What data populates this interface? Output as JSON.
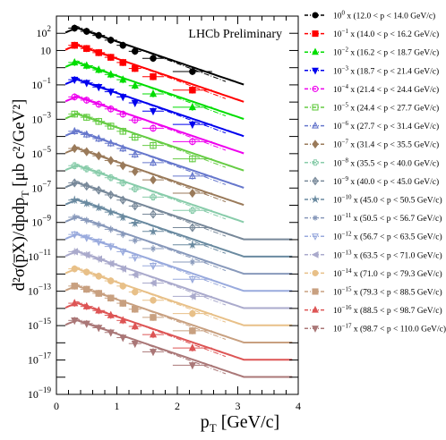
{
  "chart_data": {
    "type": "scatter",
    "title": "",
    "annotation": "LHCb Preliminary",
    "xlabel": "p",
    "xlabel_sub": "T",
    "xlabel_unit": " [GeV/c]",
    "ylabel": "d²σ(p̅X)/dpdp",
    "ylabel_sub": "T",
    "ylabel_unit": " [μb c²/GeV²]",
    "xlim": [
      0,
      4
    ],
    "ylim_log10": [
      -19,
      3
    ],
    "log_y": true,
    "grid": false,
    "legend_position": "right",
    "x_ticks": [
      {
        "v": 0,
        "label": "0"
      },
      {
        "v": 1,
        "label": "1"
      },
      {
        "v": 2,
        "label": "2"
      },
      {
        "v": 3,
        "label": "3"
      },
      {
        "v": 4,
        "label": "4"
      }
    ],
    "y_ticks": [
      {
        "e": 2,
        "base": "10",
        "exp": "2"
      },
      {
        "e": 1,
        "base": "10",
        "exp": ""
      },
      {
        "e": -1,
        "base": "10",
        "exp": "−1"
      },
      {
        "e": -3,
        "base": "10",
        "exp": "−3"
      },
      {
        "e": -5,
        "base": "10",
        "exp": "−5"
      },
      {
        "e": -7,
        "base": "10",
        "exp": "−7"
      },
      {
        "e": -9,
        "base": "10",
        "exp": "−9"
      },
      {
        "e": -11,
        "base": "10",
        "exp": "−11"
      },
      {
        "e": -13,
        "base": "10",
        "exp": "−13"
      },
      {
        "e": -15,
        "base": "10",
        "exp": "−15"
      },
      {
        "e": -17,
        "base": "10",
        "exp": "−17"
      },
      {
        "e": -19,
        "base": "10",
        "exp": "−19"
      }
    ],
    "series": [
      {
        "name": "10⁰ x (12.0 < p < 14.0 GeV/c)",
        "exp": "0",
        "range": "(12.0 < p < 14.0 GeV/c)",
        "color": "#000000",
        "marker": "circle",
        "scale_log10": 0,
        "points": [
          {
            "x": 0.3,
            "y": 200
          },
          {
            "x": 0.5,
            "y": 130
          },
          {
            "x": 0.7,
            "y": 75
          },
          {
            "x": 0.9,
            "y": 40
          },
          {
            "x": 1.1,
            "y": 20
          },
          {
            "x": 1.3,
            "y": 9
          },
          {
            "x": 1.6,
            "y": 3.5
          },
          {
            "x": 2.25,
            "y": 0.6
          }
        ]
      },
      {
        "name": "10⁻¹ x (14.0 < p < 16.2 GeV/c)",
        "exp": "−1",
        "range": "(14.0 < p < 16.2 GeV/c)",
        "color": "#ff0000",
        "marker": "square",
        "scale_log10": -1,
        "points": [
          {
            "x": 0.3,
            "y": 20
          },
          {
            "x": 0.5,
            "y": 13
          },
          {
            "x": 0.7,
            "y": 7.5
          },
          {
            "x": 0.9,
            "y": 4
          },
          {
            "x": 1.1,
            "y": 2
          },
          {
            "x": 1.3,
            "y": 0.9
          },
          {
            "x": 1.6,
            "y": 0.3
          },
          {
            "x": 2.25,
            "y": 0.05
          }
        ]
      },
      {
        "name": "10⁻² x (16.2 < p < 18.7 GeV/c)",
        "exp": "−2",
        "range": "(16.2 < p < 18.7 GeV/c)",
        "color": "#00dd00",
        "marker": "triangle-up",
        "scale_log10": -2,
        "points": [
          {
            "x": 0.3,
            "y": 2
          },
          {
            "x": 0.5,
            "y": 1.3
          },
          {
            "x": 0.7,
            "y": 0.75
          },
          {
            "x": 0.9,
            "y": 0.4
          },
          {
            "x": 1.1,
            "y": 0.2
          },
          {
            "x": 1.3,
            "y": 0.09
          },
          {
            "x": 1.6,
            "y": 0.03
          },
          {
            "x": 2.25,
            "y": 0.005
          }
        ]
      },
      {
        "name": "10⁻³ x (18.7 < p < 21.4 GeV/c)",
        "exp": "−3",
        "range": "(18.7 < p < 21.4 GeV/c)",
        "color": "#0000ee",
        "marker": "triangle-down",
        "scale_log10": -3,
        "points": [
          {
            "x": 0.3,
            "y": 0.2
          },
          {
            "x": 0.5,
            "y": 0.13
          },
          {
            "x": 0.7,
            "y": 0.075
          },
          {
            "x": 0.9,
            "y": 0.04
          },
          {
            "x": 1.1,
            "y": 0.02
          },
          {
            "x": 1.3,
            "y": 0.009
          },
          {
            "x": 1.6,
            "y": 0.003
          },
          {
            "x": 2.25,
            "y": 0.0005
          }
        ]
      },
      {
        "name": "10⁻⁴ x (21.4 < p < 24.4 GeV/c)",
        "exp": "−4",
        "range": "(21.4 < p < 24.4 GeV/c)",
        "color": "#ee00ee",
        "marker": "circle-open",
        "scale_log10": -4,
        "points": [
          {
            "x": 0.3,
            "y": 0.02
          },
          {
            "x": 0.5,
            "y": 0.013
          },
          {
            "x": 0.7,
            "y": 0.0075
          },
          {
            "x": 0.9,
            "y": 0.004
          },
          {
            "x": 1.1,
            "y": 0.002
          },
          {
            "x": 1.3,
            "y": 0.0009
          },
          {
            "x": 1.6,
            "y": 0.0003
          },
          {
            "x": 2.25,
            "y": 5e-05
          }
        ]
      },
      {
        "name": "10⁻⁵ x (24.4 < p < 27.7 GeV/c)",
        "exp": "−5",
        "range": "(24.4 < p < 27.7 GeV/c)",
        "color": "#66cc44",
        "marker": "square-open",
        "scale_log10": -5,
        "points": [
          {
            "x": 0.3,
            "y": 0.002
          },
          {
            "x": 0.5,
            "y": 0.0013
          },
          {
            "x": 0.7,
            "y": 0.00075
          },
          {
            "x": 0.9,
            "y": 0.0004
          },
          {
            "x": 1.1,
            "y": 0.0002
          },
          {
            "x": 1.3,
            "y": 9e-05
          },
          {
            "x": 1.6,
            "y": 3e-05
          },
          {
            "x": 2.25,
            "y": 5e-06
          }
        ]
      },
      {
        "name": "10⁻⁶ x (27.7 < p < 31.4 GeV/c)",
        "exp": "−6",
        "range": "(27.7 < p < 31.4 GeV/c)",
        "color": "#6677cc",
        "marker": "triangle-open",
        "scale_log10": -6,
        "points": [
          {
            "x": 0.3,
            "y": 0.0002
          },
          {
            "x": 0.5,
            "y": 0.00013
          },
          {
            "x": 0.7,
            "y": 7.5e-05
          },
          {
            "x": 0.9,
            "y": 4e-05
          },
          {
            "x": 1.1,
            "y": 2e-05
          },
          {
            "x": 1.3,
            "y": 9e-06
          },
          {
            "x": 1.6,
            "y": 3e-06
          },
          {
            "x": 2.25,
            "y": 5e-07
          }
        ]
      },
      {
        "name": "10⁻⁷ x (31.4 < p < 35.5 GeV/c)",
        "exp": "−7",
        "range": "(31.4 < p < 35.5 GeV/c)",
        "color": "#9a7a5a",
        "marker": "diamond",
        "scale_log10": -7,
        "points": [
          {
            "x": 0.3,
            "y": 2e-05
          },
          {
            "x": 0.5,
            "y": 1.3e-05
          },
          {
            "x": 0.7,
            "y": 7.5e-06
          },
          {
            "x": 0.9,
            "y": 4e-06
          },
          {
            "x": 1.1,
            "y": 2e-06
          },
          {
            "x": 1.3,
            "y": 9e-07
          },
          {
            "x": 1.6,
            "y": 3e-07
          },
          {
            "x": 2.25,
            "y": 5e-08
          }
        ]
      },
      {
        "name": "10⁻⁸ x (35.5 < p < 40.0 GeV/c)",
        "exp": "−8",
        "range": "(35.5 < p < 40.0 GeV/c)",
        "color": "#88ccaa",
        "marker": "cross-open",
        "scale_log10": -8,
        "points": [
          {
            "x": 0.3,
            "y": 2e-06
          },
          {
            "x": 0.5,
            "y": 1.3e-06
          },
          {
            "x": 0.7,
            "y": 7.5e-07
          },
          {
            "x": 0.9,
            "y": 4e-07
          },
          {
            "x": 1.1,
            "y": 2e-07
          },
          {
            "x": 1.3,
            "y": 9e-08
          },
          {
            "x": 1.6,
            "y": 3e-08
          },
          {
            "x": 2.25,
            "y": 5e-09
          }
        ]
      },
      {
        "name": "10⁻⁹ x (40.0 < p < 45.0 GeV/c)",
        "exp": "−9",
        "range": "(40.0 < p < 45.0 GeV/c)",
        "color": "#778899",
        "marker": "diamond-cross",
        "scale_log10": -9,
        "points": [
          {
            "x": 0.3,
            "y": 2e-07
          },
          {
            "x": 0.5,
            "y": 1.3e-07
          },
          {
            "x": 0.7,
            "y": 7.5e-08
          },
          {
            "x": 0.9,
            "y": 4e-08
          },
          {
            "x": 1.1,
            "y": 2e-08
          },
          {
            "x": 1.3,
            "y": 9e-09
          },
          {
            "x": 1.6,
            "y": 3e-09
          },
          {
            "x": 2.25,
            "y": 5e-10
          }
        ]
      },
      {
        "name": "10⁻¹⁰ x (45.0 < p < 50.5 GeV/c)",
        "exp": "−10",
        "range": "(45.0 < p < 50.5 GeV/c)",
        "color": "#6a8aa0",
        "marker": "star",
        "scale_log10": -10,
        "points": [
          {
            "x": 0.3,
            "y": 2e-08
          },
          {
            "x": 0.5,
            "y": 1.3e-08
          },
          {
            "x": 0.7,
            "y": 7.5e-09
          },
          {
            "x": 0.9,
            "y": 4e-09
          },
          {
            "x": 1.1,
            "y": 2e-09
          },
          {
            "x": 1.3,
            "y": 9e-10
          },
          {
            "x": 1.6,
            "y": 3e-10
          },
          {
            "x": 2.25,
            "y": 5e-11
          }
        ]
      },
      {
        "name": "10⁻¹¹ x (50.5 < p < 56.7 GeV/c)",
        "exp": "−11",
        "range": "(50.5 < p < 56.7 GeV/c)",
        "color": "#8899bb",
        "marker": "asterisk",
        "scale_log10": -11,
        "points": [
          {
            "x": 0.3,
            "y": 2e-09
          },
          {
            "x": 0.5,
            "y": 1.3e-09
          },
          {
            "x": 0.7,
            "y": 7.5e-10
          },
          {
            "x": 0.9,
            "y": 4e-10
          },
          {
            "x": 1.1,
            "y": 2e-10
          },
          {
            "x": 1.3,
            "y": 9e-11
          },
          {
            "x": 1.6,
            "y": 3e-11
          },
          {
            "x": 2.25,
            "y": 5e-12
          }
        ]
      },
      {
        "name": "10⁻¹² x (56.7 < p < 63.5 GeV/c)",
        "exp": "−12",
        "range": "(56.7 < p < 63.5 GeV/c)",
        "color": "#99aadd",
        "marker": "triangle-down-open",
        "scale_log10": -12,
        "points": [
          {
            "x": 0.3,
            "y": 2e-10
          },
          {
            "x": 0.5,
            "y": 1.3e-10
          },
          {
            "x": 0.7,
            "y": 7.5e-11
          },
          {
            "x": 0.9,
            "y": 4e-11
          },
          {
            "x": 1.1,
            "y": 2e-11
          },
          {
            "x": 1.3,
            "y": 9e-12
          },
          {
            "x": 1.6,
            "y": 3e-12
          },
          {
            "x": 2.25,
            "y": 5e-13
          }
        ]
      },
      {
        "name": "10⁻¹³ x (63.5 < p < 71.0 GeV/c)",
        "exp": "−13",
        "range": "(63.5 < p < 71.0 GeV/c)",
        "color": "#aaaacc",
        "marker": "triangle-left",
        "scale_log10": -13,
        "points": [
          {
            "x": 0.3,
            "y": 2e-11
          },
          {
            "x": 0.5,
            "y": 1.3e-11
          },
          {
            "x": 0.7,
            "y": 7.5e-12
          },
          {
            "x": 0.9,
            "y": 4e-12
          },
          {
            "x": 1.1,
            "y": 2e-12
          },
          {
            "x": 1.3,
            "y": 9e-13
          },
          {
            "x": 1.6,
            "y": 3e-13
          },
          {
            "x": 2.25,
            "y": 5e-14
          }
        ]
      },
      {
        "name": "10⁻¹⁴ x (71.0 < p < 79.3 GeV/c)",
        "exp": "−14",
        "range": "(71.0 < p < 79.3 GeV/c)",
        "color": "#e8c088",
        "marker": "circle",
        "scale_log10": -14,
        "points": [
          {
            "x": 0.3,
            "y": 2e-12
          },
          {
            "x": 0.5,
            "y": 1.3e-12
          },
          {
            "x": 0.7,
            "y": 7.5e-13
          },
          {
            "x": 0.9,
            "y": 4e-13
          },
          {
            "x": 1.1,
            "y": 2e-13
          },
          {
            "x": 1.3,
            "y": 9e-14
          },
          {
            "x": 1.6,
            "y": 3e-14
          },
          {
            "x": 2.25,
            "y": 5e-15
          }
        ]
      },
      {
        "name": "10⁻¹⁵ x (79.3 < p < 88.5 GeV/c)",
        "exp": "−15",
        "range": "(79.3 < p < 88.5 GeV/c)",
        "color": "#c8a080",
        "marker": "square",
        "scale_log10": -15,
        "points": [
          {
            "x": 0.3,
            "y": 2e-13
          },
          {
            "x": 0.5,
            "y": 1.3e-13
          },
          {
            "x": 0.7,
            "y": 7.5e-14
          },
          {
            "x": 0.9,
            "y": 4e-14
          },
          {
            "x": 1.1,
            "y": 2e-14
          },
          {
            "x": 1.3,
            "y": 9e-15
          },
          {
            "x": 1.6,
            "y": 3e-15
          },
          {
            "x": 2.25,
            "y": 5e-16
          }
        ]
      },
      {
        "name": "10⁻¹⁶ x (88.5 < p < 98.7 GeV/c)",
        "exp": "−16",
        "range": "(88.5 < p < 98.7 GeV/c)",
        "color": "#dd5555",
        "marker": "triangle-up",
        "scale_log10": -16,
        "points": [
          {
            "x": 0.3,
            "y": 2e-14
          },
          {
            "x": 0.5,
            "y": 1.3e-14
          },
          {
            "x": 0.7,
            "y": 7.5e-15
          },
          {
            "x": 0.9,
            "y": 4e-15
          },
          {
            "x": 1.1,
            "y": 2e-15
          },
          {
            "x": 1.3,
            "y": 9e-16
          },
          {
            "x": 1.6,
            "y": 3e-16
          },
          {
            "x": 2.25,
            "y": 5e-17
          }
        ]
      },
      {
        "name": "10⁻¹⁷ x (98.7 < p < 110.0 GeV/c)",
        "exp": "−17",
        "range": "(98.7 < p < 110.0 GeV/c)",
        "color": "#aa7777",
        "marker": "triangle-down",
        "scale_log10": -17,
        "points": [
          {
            "x": 0.3,
            "y": 2e-15
          },
          {
            "x": 0.5,
            "y": 1.3e-15
          },
          {
            "x": 0.7,
            "y": 7.5e-16
          },
          {
            "x": 0.9,
            "y": 4e-16
          },
          {
            "x": 1.1,
            "y": 2e-16
          },
          {
            "x": 1.3,
            "y": 9e-17
          },
          {
            "x": 1.6,
            "y": 3e-17
          },
          {
            "x": 2.25,
            "y": 5e-18
          }
        ]
      }
    ]
  }
}
